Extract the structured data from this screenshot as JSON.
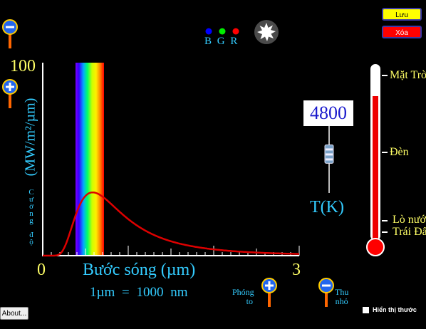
{
  "controls": {
    "save_label": "Lưu",
    "clear_label": "Xóa",
    "about_label": "About...",
    "show_ruler_label": "Hiển thị thước",
    "zoom_in_label_1": "Phóng",
    "zoom_in_label_2": "to",
    "zoom_out_label_1": "Thu",
    "zoom_out_label_2": "nhỏ"
  },
  "bgr": {
    "b_label": "B",
    "g_label": "G",
    "r_label": "R",
    "b_color": "#0000ff",
    "g_color": "#00ee00",
    "r_color": "#ff0000"
  },
  "graph": {
    "y_max_label": "100",
    "y_axis_label": "(MW/m²/µm)",
    "y_axis_vertical": "Cường độ",
    "x_min_label": "0",
    "x_max_label": "3",
    "x_axis_label": "Bước sóng (µm)",
    "unit_note": "1µm = 1000 nm",
    "curve_color": "#dd0000"
  },
  "temperature": {
    "value": "4800",
    "label": "T(K)",
    "slider_fraction": 0.22
  },
  "thermometer": {
    "fill_fraction": 0.82,
    "marks": [
      "Mặt Trời",
      "Đèn",
      "Lò nướng",
      "Trái Đất"
    ]
  }
}
